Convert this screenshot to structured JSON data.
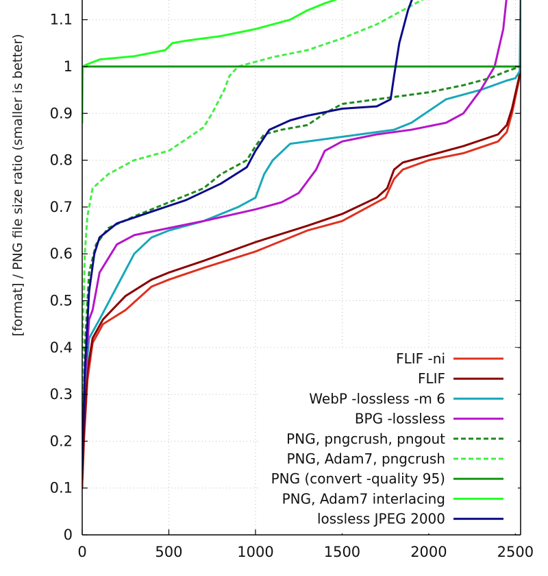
{
  "chart_data": {
    "type": "line",
    "title": "",
    "xlabel": "",
    "ylabel": "[format] / PNG file size ratio (smaller is better)",
    "xlim": [
      0,
      2530
    ],
    "ylim": [
      0,
      1.15
    ],
    "xticks": [
      0,
      500,
      1000,
      1500,
      2000,
      2500
    ],
    "xtick_labels": [
      "0",
      "500",
      "1000",
      "1500",
      "2000",
      "2500"
    ],
    "yticks": [
      0,
      0.1,
      0.2,
      0.3,
      0.4,
      0.5,
      0.6,
      0.7,
      0.8,
      0.9,
      1,
      1.1
    ],
    "ytick_labels": [
      "0",
      "0.1",
      "0.2",
      "0.3",
      "0.4",
      "0.5",
      "0.6",
      "0.7",
      "0.8",
      "0.9",
      "1",
      "1.1"
    ],
    "grid": true,
    "legend_position": "bottom-right",
    "series": [
      {
        "name": "FLIF -ni",
        "color": "#e0301e",
        "dash": false,
        "points": [
          [
            0,
            0.1
          ],
          [
            10,
            0.2
          ],
          [
            30,
            0.33
          ],
          [
            60,
            0.41
          ],
          [
            120,
            0.45
          ],
          [
            250,
            0.48
          ],
          [
            400,
            0.53
          ],
          [
            500,
            0.545
          ],
          [
            700,
            0.57
          ],
          [
            1000,
            0.605
          ],
          [
            1300,
            0.65
          ],
          [
            1500,
            0.67
          ],
          [
            1700,
            0.71
          ],
          [
            1750,
            0.72
          ],
          [
            1800,
            0.76
          ],
          [
            1850,
            0.78
          ],
          [
            2000,
            0.8
          ],
          [
            2200,
            0.815
          ],
          [
            2400,
            0.84
          ],
          [
            2450,
            0.86
          ],
          [
            2480,
            0.9
          ],
          [
            2520,
            0.97
          ],
          [
            2530,
            1.0
          ]
        ]
      },
      {
        "name": "FLIF",
        "color": "#8b0000",
        "dash": false,
        "points": [
          [
            0,
            0.12
          ],
          [
            10,
            0.22
          ],
          [
            30,
            0.35
          ],
          [
            60,
            0.42
          ],
          [
            120,
            0.46
          ],
          [
            250,
            0.51
          ],
          [
            400,
            0.545
          ],
          [
            500,
            0.56
          ],
          [
            700,
            0.585
          ],
          [
            1000,
            0.625
          ],
          [
            1300,
            0.66
          ],
          [
            1500,
            0.685
          ],
          [
            1700,
            0.72
          ],
          [
            1760,
            0.74
          ],
          [
            1800,
            0.78
          ],
          [
            1850,
            0.795
          ],
          [
            2000,
            0.81
          ],
          [
            2200,
            0.83
          ],
          [
            2400,
            0.855
          ],
          [
            2450,
            0.875
          ],
          [
            2480,
            0.91
          ],
          [
            2520,
            0.975
          ],
          [
            2530,
            1.0
          ]
        ]
      },
      {
        "name": "WebP -lossless -m 6",
        "color": "#17a8b8",
        "dash": false,
        "points": [
          [
            0,
            0.2
          ],
          [
            10,
            0.3
          ],
          [
            40,
            0.42
          ],
          [
            100,
            0.46
          ],
          [
            200,
            0.53
          ],
          [
            300,
            0.6
          ],
          [
            400,
            0.635
          ],
          [
            500,
            0.65
          ],
          [
            700,
            0.67
          ],
          [
            900,
            0.7
          ],
          [
            1000,
            0.72
          ],
          [
            1050,
            0.77
          ],
          [
            1100,
            0.8
          ],
          [
            1200,
            0.835
          ],
          [
            1500,
            0.85
          ],
          [
            1700,
            0.86
          ],
          [
            1800,
            0.865
          ],
          [
            1900,
            0.88
          ],
          [
            2000,
            0.905
          ],
          [
            2100,
            0.93
          ],
          [
            2300,
            0.95
          ],
          [
            2450,
            0.97
          ],
          [
            2500,
            0.975
          ],
          [
            2525,
            0.99
          ],
          [
            2530,
            1.15
          ]
        ]
      },
      {
        "name": "BPG -lossless",
        "color": "#b515c8",
        "dash": false,
        "points": [
          [
            0,
            0.18
          ],
          [
            10,
            0.3
          ],
          [
            40,
            0.46
          ],
          [
            60,
            0.48
          ],
          [
            100,
            0.56
          ],
          [
            200,
            0.62
          ],
          [
            300,
            0.64
          ],
          [
            500,
            0.655
          ],
          [
            700,
            0.67
          ],
          [
            1000,
            0.695
          ],
          [
            1150,
            0.71
          ],
          [
            1250,
            0.73
          ],
          [
            1350,
            0.78
          ],
          [
            1400,
            0.82
          ],
          [
            1500,
            0.84
          ],
          [
            1700,
            0.855
          ],
          [
            1900,
            0.865
          ],
          [
            2100,
            0.88
          ],
          [
            2200,
            0.9
          ],
          [
            2300,
            0.95
          ],
          [
            2380,
            1.0
          ],
          [
            2430,
            1.08
          ],
          [
            2450,
            1.15
          ]
        ]
      },
      {
        "name": "PNG, pngcrush, pngout",
        "color": "#1e8a1e",
        "dash": true,
        "points": [
          [
            0,
            0.15
          ],
          [
            15,
            0.4
          ],
          [
            40,
            0.56
          ],
          [
            80,
            0.62
          ],
          [
            150,
            0.655
          ],
          [
            300,
            0.68
          ],
          [
            500,
            0.71
          ],
          [
            700,
            0.74
          ],
          [
            800,
            0.77
          ],
          [
            950,
            0.8
          ],
          [
            1000,
            0.83
          ],
          [
            1050,
            0.855
          ],
          [
            1150,
            0.865
          ],
          [
            1300,
            0.875
          ],
          [
            1400,
            0.9
          ],
          [
            1500,
            0.92
          ],
          [
            1700,
            0.93
          ],
          [
            2000,
            0.945
          ],
          [
            2200,
            0.96
          ],
          [
            2350,
            0.975
          ],
          [
            2450,
            0.99
          ],
          [
            2530,
            1.0
          ]
        ]
      },
      {
        "name": "PNG, Adam7, pngcrush",
        "color": "#44ee44",
        "dash": true,
        "points": [
          [
            0,
            0.2
          ],
          [
            5,
            0.45
          ],
          [
            15,
            0.6
          ],
          [
            30,
            0.68
          ],
          [
            60,
            0.74
          ],
          [
            150,
            0.77
          ],
          [
            300,
            0.8
          ],
          [
            500,
            0.82
          ],
          [
            600,
            0.845
          ],
          [
            700,
            0.87
          ],
          [
            750,
            0.9
          ],
          [
            820,
            0.95
          ],
          [
            850,
            0.98
          ],
          [
            900,
            1.0
          ],
          [
            1100,
            1.02
          ],
          [
            1300,
            1.035
          ],
          [
            1500,
            1.06
          ],
          [
            1700,
            1.09
          ],
          [
            1900,
            1.13
          ],
          [
            2000,
            1.15
          ]
        ]
      },
      {
        "name": "PNG (convert -quality 95)",
        "color": "#129812",
        "dash": false,
        "points": [
          [
            0,
            1.0
          ],
          [
            2530,
            1.0
          ]
        ]
      },
      {
        "name": "PNG, Adam7 interlacing",
        "color": "#22ff22",
        "dash": false,
        "points": [
          [
            0,
            0.88
          ],
          [
            3,
            1.0
          ],
          [
            30,
            1.005
          ],
          [
            100,
            1.015
          ],
          [
            300,
            1.022
          ],
          [
            480,
            1.035
          ],
          [
            520,
            1.05
          ],
          [
            600,
            1.055
          ],
          [
            800,
            1.065
          ],
          [
            1000,
            1.08
          ],
          [
            1200,
            1.1
          ],
          [
            1300,
            1.12
          ],
          [
            1400,
            1.135
          ],
          [
            1520,
            1.15
          ]
        ]
      },
      {
        "name": "lossless JPEG 2000",
        "color": "#0b0b88",
        "dash": false,
        "points": [
          [
            0,
            0.14
          ],
          [
            15,
            0.35
          ],
          [
            40,
            0.52
          ],
          [
            70,
            0.6
          ],
          [
            100,
            0.635
          ],
          [
            200,
            0.665
          ],
          [
            400,
            0.69
          ],
          [
            600,
            0.715
          ],
          [
            800,
            0.75
          ],
          [
            950,
            0.785
          ],
          [
            1000,
            0.82
          ],
          [
            1080,
            0.865
          ],
          [
            1200,
            0.885
          ],
          [
            1300,
            0.895
          ],
          [
            1500,
            0.91
          ],
          [
            1700,
            0.915
          ],
          [
            1780,
            0.93
          ],
          [
            1800,
            0.98
          ],
          [
            1830,
            1.05
          ],
          [
            1880,
            1.12
          ],
          [
            1910,
            1.15
          ]
        ]
      }
    ]
  }
}
